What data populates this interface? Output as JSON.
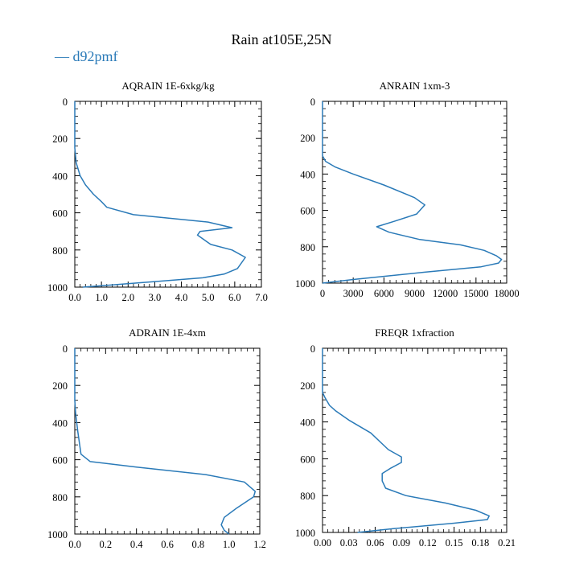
{
  "title": "Rain at105E,25N",
  "legend": {
    "label": "— d92pmf",
    "color": "#2a7ab8",
    "placement": "top-left"
  },
  "line_color": "#2a7ab8",
  "chart_data": [
    {
      "type": "line",
      "title": "AQRAIN  1E-6xkg/kg",
      "xlim": [
        0,
        7
      ],
      "ylim": [
        1000,
        0
      ],
      "y_inverted": true,
      "xticks": [
        0,
        1,
        2,
        3,
        4,
        5,
        6,
        7
      ],
      "xtick_labels": [
        "0.0",
        "1.0",
        "2.0",
        "3.0",
        "4.0",
        "5.0",
        "6.0",
        "7.0"
      ],
      "yticks": [
        0,
        200,
        400,
        600,
        800,
        1000
      ],
      "ytick_labels": [
        "0",
        "200",
        "400",
        "600",
        "800",
        "1000"
      ],
      "series": [
        {
          "name": "d92pmf",
          "x": [
            0,
            0,
            0.05,
            0.2,
            0.4,
            0.7,
            1.0,
            1.2,
            2.2,
            5.0,
            5.9,
            4.7,
            4.6,
            5.1,
            5.9,
            6.4,
            6.1,
            5.6,
            4.8,
            3.0,
            1.2,
            0.3
          ],
          "y": [
            0,
            250,
            330,
            400,
            450,
            500,
            540,
            570,
            610,
            650,
            680,
            700,
            720,
            770,
            800,
            840,
            900,
            930,
            950,
            970,
            990,
            1000
          ]
        }
      ]
    },
    {
      "type": "line",
      "title": "ANRAIN  1xm-3",
      "xlim": [
        0,
        18000
      ],
      "ylim": [
        1000,
        0
      ],
      "y_inverted": true,
      "xticks": [
        0,
        3000,
        6000,
        9000,
        12000,
        15000,
        18000
      ],
      "xtick_labels": [
        "0",
        "3000",
        "6000",
        "9000",
        "12000",
        "15000",
        "18000"
      ],
      "yticks": [
        0,
        200,
        400,
        600,
        800,
        1000
      ],
      "ytick_labels": [
        "0",
        "200",
        "400",
        "600",
        "800",
        "1000"
      ],
      "series": [
        {
          "name": "d92pmf",
          "x": [
            0,
            0,
            300,
            1200,
            3000,
            6000,
            9000,
            10000,
            9200,
            7000,
            5300,
            6500,
            9500,
            13500,
            15800,
            17000,
            17500,
            17200,
            15500,
            10000,
            3000,
            0
          ],
          "y": [
            0,
            300,
            330,
            360,
            400,
            460,
            530,
            570,
            620,
            660,
            690,
            720,
            760,
            790,
            820,
            850,
            870,
            890,
            910,
            940,
            980,
            1000
          ]
        }
      ]
    },
    {
      "type": "line",
      "title": "ADRAIN  1E-4xm",
      "xlim": [
        0,
        1.2
      ],
      "ylim": [
        1000,
        0
      ],
      "y_inverted": true,
      "xticks": [
        0,
        0.2,
        0.4,
        0.6,
        0.8,
        1.0,
        1.2
      ],
      "xtick_labels": [
        "0.0",
        "0.2",
        "0.4",
        "0.6",
        "0.8",
        "1.0",
        "1.2"
      ],
      "yticks": [
        0,
        200,
        400,
        600,
        800,
        1000
      ],
      "ytick_labels": [
        "0",
        "200",
        "400",
        "600",
        "800",
        "1000"
      ],
      "series": [
        {
          "name": "d92pmf",
          "x": [
            0,
            0,
            0.005,
            0.02,
            0.04,
            0.1,
            0.4,
            0.85,
            1.1,
            1.17,
            1.16,
            1.05,
            0.97,
            0.95,
            0.97,
            1.0
          ],
          "y": [
            0,
            280,
            350,
            450,
            570,
            610,
            640,
            680,
            720,
            770,
            800,
            860,
            910,
            950,
            980,
            1000
          ]
        }
      ]
    },
    {
      "type": "line",
      "title": "FREQR  1xfraction",
      "xlim": [
        0,
        0.21
      ],
      "ylim": [
        1000,
        0
      ],
      "y_inverted": true,
      "xticks": [
        0,
        0.03,
        0.06,
        0.09,
        0.12,
        0.15,
        0.18,
        0.21
      ],
      "xtick_labels": [
        "0.00",
        "0.03",
        "0.06",
        "0.09",
        "0.12",
        "0.15",
        "0.18",
        "0.21"
      ],
      "yticks": [
        0,
        200,
        400,
        600,
        800,
        1000
      ],
      "ytick_labels": [
        "0",
        "200",
        "400",
        "600",
        "800",
        "1000"
      ],
      "series": [
        {
          "name": "d92pmf",
          "x": [
            0,
            0,
            0.003,
            0.008,
            0.015,
            0.03,
            0.055,
            0.075,
            0.09,
            0.09,
            0.078,
            0.068,
            0.068,
            0.072,
            0.095,
            0.14,
            0.175,
            0.19,
            0.188,
            0.15,
            0.08,
            0.04
          ],
          "y": [
            0,
            240,
            270,
            310,
            340,
            390,
            460,
            550,
            590,
            620,
            650,
            680,
            720,
            760,
            800,
            840,
            880,
            910,
            930,
            950,
            980,
            1000
          ]
        }
      ]
    }
  ]
}
